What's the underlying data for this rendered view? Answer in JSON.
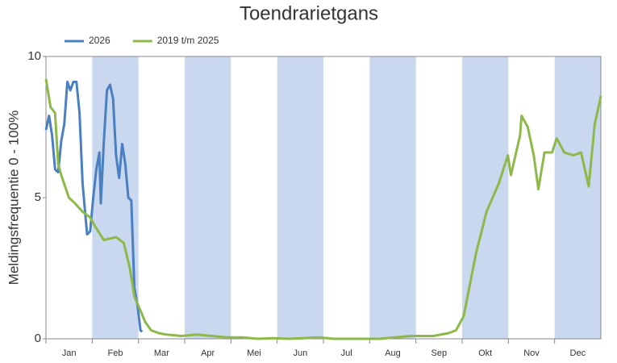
{
  "chart_data": {
    "type": "line",
    "title": "Toendrarietgans",
    "y_label": "Meldingsfrequentie 0 - 100%",
    "categories": [
      "Jan",
      "Feb",
      "Mar",
      "Apr",
      "Mei",
      "Jun",
      "Jul",
      "Aug",
      "Sep",
      "Okt",
      "Nov",
      "Dec"
    ],
    "band_color": "#c9d8ee",
    "xlim": [
      1,
      365
    ],
    "ylim": [
      0,
      10
    ],
    "yticks": [
      0,
      5,
      10
    ],
    "legend": "top-left",
    "series": [
      {
        "name": "2026",
        "color": "#4a7fc1",
        "x": [
          1,
          3,
          5,
          7,
          9,
          11,
          13,
          15,
          17,
          19,
          21,
          23,
          25,
          27,
          28,
          30,
          32,
          34,
          36,
          37,
          39,
          41,
          43,
          45,
          47,
          49,
          51,
          53,
          55,
          57,
          59,
          61,
          63,
          64
        ],
        "values": [
          7.4,
          7.9,
          7.2,
          6.0,
          5.9,
          7.0,
          7.6,
          9.1,
          8.8,
          9.1,
          9.1,
          8.0,
          5.5,
          4.3,
          3.7,
          3.8,
          5.0,
          6.0,
          6.6,
          4.8,
          7.0,
          8.8,
          9.0,
          8.5,
          6.5,
          5.7,
          6.9,
          6.2,
          5.0,
          4.9,
          1.8,
          1.2,
          0.3,
          0.25
        ]
      },
      {
        "name": "2019 t/m 2025",
        "color": "#8db84a",
        "x": [
          1,
          4,
          7,
          9,
          11,
          16,
          20,
          25,
          30,
          33,
          39,
          47,
          52,
          56,
          59,
          63,
          66,
          70,
          75,
          80,
          90,
          100,
          110,
          120,
          130,
          140,
          150,
          160,
          170,
          180,
          190,
          200,
          210,
          220,
          230,
          240,
          255,
          265,
          270,
          275,
          283,
          290,
          298,
          304,
          306,
          312,
          313,
          317,
          321,
          324,
          328,
          333,
          336,
          341,
          347,
          352,
          357,
          361,
          365
        ],
        "values": [
          9.2,
          8.2,
          8.0,
          6.2,
          5.8,
          5.0,
          4.8,
          4.5,
          4.3,
          4.0,
          3.5,
          3.6,
          3.4,
          2.5,
          1.5,
          1.0,
          0.6,
          0.3,
          0.2,
          0.15,
          0.1,
          0.15,
          0.1,
          0.05,
          0.05,
          0,
          0.02,
          0,
          0.02,
          0.05,
          0,
          0,
          0,
          0,
          0.05,
          0.1,
          0.1,
          0.2,
          0.3,
          0.8,
          3.0,
          4.5,
          5.5,
          6.5,
          5.8,
          7.2,
          7.9,
          7.5,
          6.5,
          5.3,
          6.6,
          6.6,
          7.1,
          6.6,
          6.5,
          6.6,
          5.4,
          7.6,
          8.6
        ]
      }
    ]
  }
}
